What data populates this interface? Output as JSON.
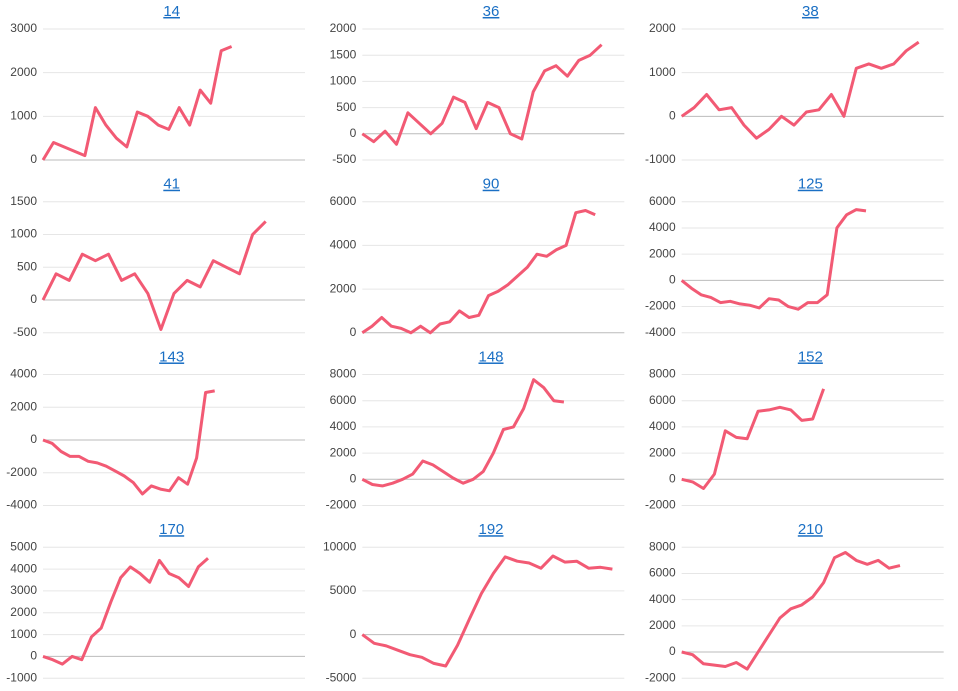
{
  "chart_data": [
    {
      "type": "line",
      "title": "14",
      "color": "#f25a74",
      "grid": true,
      "xlim": [
        0,
        25
      ],
      "ylim": [
        0,
        3000
      ],
      "yticks": [
        0,
        1000,
        2000,
        3000
      ],
      "values": [
        0,
        400,
        300,
        200,
        100,
        1200,
        800,
        500,
        300,
        1100,
        1000,
        800,
        700,
        1200,
        800,
        1600,
        1300,
        2500,
        2600
      ]
    },
    {
      "type": "line",
      "title": "36",
      "color": "#f25a74",
      "grid": true,
      "xlim": [
        0,
        23
      ],
      "ylim": [
        -500,
        2000
      ],
      "yticks": [
        -500,
        0,
        500,
        1000,
        1500,
        2000
      ],
      "values": [
        0,
        -150,
        50,
        -200,
        400,
        200,
        0,
        200,
        700,
        600,
        100,
        600,
        500,
        0,
        -100,
        800,
        1200,
        1300,
        1100,
        1400,
        1500,
        1700
      ]
    },
    {
      "type": "line",
      "title": "38",
      "color": "#f25a74",
      "grid": true,
      "xlim": [
        0,
        21
      ],
      "ylim": [
        -1000,
        2000
      ],
      "yticks": [
        -1000,
        0,
        1000,
        2000
      ],
      "values": [
        0,
        200,
        500,
        150,
        200,
        -200,
        -500,
        -300,
        0,
        -200,
        100,
        150,
        500,
        0,
        1100,
        1200,
        1100,
        1200,
        1500,
        1700
      ]
    },
    {
      "type": "line",
      "title": "41",
      "color": "#f25a74",
      "grid": true,
      "xlim": [
        0,
        20
      ],
      "ylim": [
        -500,
        1500
      ],
      "yticks": [
        -500,
        0,
        500,
        1000,
        1500
      ],
      "values": [
        0,
        400,
        300,
        700,
        600,
        700,
        300,
        400,
        100,
        -450,
        100,
        300,
        200,
        600,
        500,
        400,
        1000,
        1200
      ]
    },
    {
      "type": "line",
      "title": "90",
      "color": "#f25a74",
      "grid": true,
      "xlim": [
        0,
        27
      ],
      "ylim": [
        0,
        6000
      ],
      "yticks": [
        0,
        2000,
        4000,
        6000
      ],
      "values": [
        0,
        300,
        700,
        300,
        200,
        0,
        300,
        0,
        400,
        500,
        1000,
        700,
        800,
        1700,
        1900,
        2200,
        2600,
        3000,
        3600,
        3500,
        3800,
        4000,
        5500,
        5600,
        5400
      ]
    },
    {
      "type": "line",
      "title": "125",
      "color": "#f25a74",
      "grid": true,
      "xlim": [
        0,
        27
      ],
      "ylim": [
        -4000,
        6000
      ],
      "yticks": [
        -4000,
        -2000,
        0,
        2000,
        4000,
        6000
      ],
      "values": [
        0,
        -600,
        -1100,
        -1300,
        -1700,
        -1600,
        -1800,
        -1900,
        -2100,
        -1400,
        -1500,
        -2000,
        -2200,
        -1700,
        -1700,
        -1100,
        4000,
        5000,
        5400,
        5300
      ]
    },
    {
      "type": "line",
      "title": "143",
      "color": "#f25a74",
      "grid": true,
      "xlim": [
        0,
        29
      ],
      "ylim": [
        -4000,
        4000
      ],
      "yticks": [
        -4000,
        -2000,
        0,
        2000,
        4000
      ],
      "values": [
        0,
        -200,
        -700,
        -1000,
        -1000,
        -1300,
        -1400,
        -1600,
        -1900,
        -2200,
        -2600,
        -3300,
        -2800,
        -3000,
        -3100,
        -2300,
        -2700,
        -1100,
        2900,
        3000
      ]
    },
    {
      "type": "line",
      "title": "148",
      "color": "#f25a74",
      "grid": true,
      "xlim": [
        0,
        26
      ],
      "ylim": [
        -2000,
        8000
      ],
      "yticks": [
        -2000,
        0,
        2000,
        4000,
        6000,
        8000
      ],
      "values": [
        0,
        -400,
        -500,
        -300,
        0,
        400,
        1400,
        1100,
        600,
        100,
        -300,
        0,
        600,
        2000,
        3800,
        4000,
        5400,
        7600,
        7000,
        6000,
        5900
      ]
    },
    {
      "type": "line",
      "title": "152",
      "color": "#f25a74",
      "grid": true,
      "xlim": [
        0,
        24
      ],
      "ylim": [
        -2000,
        8000
      ],
      "yticks": [
        -2000,
        0,
        2000,
        4000,
        6000,
        8000
      ],
      "values": [
        0,
        -200,
        -700,
        400,
        3700,
        3200,
        3100,
        5200,
        5300,
        5500,
        5300,
        4500,
        4600,
        6900
      ]
    },
    {
      "type": "line",
      "title": "170",
      "color": "#f25a74",
      "grid": true,
      "xlim": [
        0,
        27
      ],
      "ylim": [
        -1000,
        5000
      ],
      "yticks": [
        -1000,
        0,
        1000,
        2000,
        3000,
        4000,
        5000
      ],
      "values": [
        0,
        -150,
        -350,
        0,
        -150,
        900,
        1300,
        2500,
        3600,
        4100,
        3800,
        3400,
        4400,
        3800,
        3600,
        3200,
        4100,
        4500
      ]
    },
    {
      "type": "line",
      "title": "192",
      "color": "#f25a74",
      "grid": true,
      "xlim": [
        0,
        22
      ],
      "ylim": [
        -5000,
        10000
      ],
      "yticks": [
        -5000,
        0,
        5000,
        10000
      ],
      "values": [
        0,
        -1000,
        -1300,
        -1800,
        -2300,
        -2600,
        -3300,
        -3600,
        -1200,
        1800,
        4700,
        7000,
        8900,
        8400,
        8200,
        7600,
        9000,
        8300,
        8400,
        7600,
        7700,
        7500
      ]
    },
    {
      "type": "line",
      "title": "210",
      "color": "#f25a74",
      "grid": true,
      "xlim": [
        0,
        24
      ],
      "ylim": [
        -2000,
        8000
      ],
      "yticks": [
        -2000,
        0,
        2000,
        4000,
        6000,
        8000
      ],
      "values": [
        0,
        -200,
        -900,
        -1000,
        -1100,
        -800,
        -1300,
        0,
        1300,
        2600,
        3300,
        3600,
        4200,
        5300,
        7200,
        7600,
        7000,
        6700,
        7000,
        6400,
        6600
      ]
    }
  ]
}
